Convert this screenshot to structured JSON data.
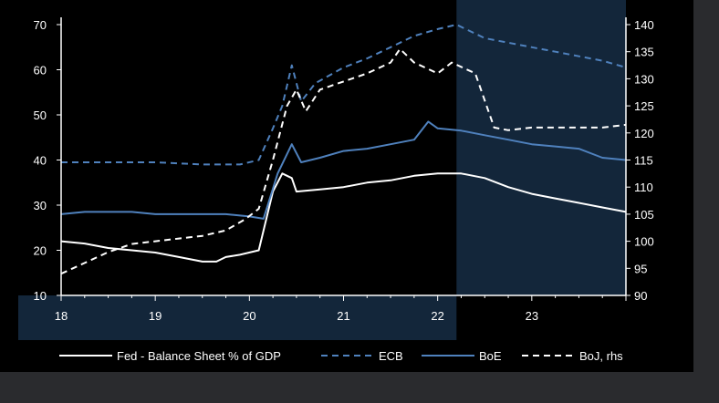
{
  "chart_data": {
    "type": "line",
    "title": "",
    "xlabel": "",
    "ylabel": "",
    "x_ticks": [
      {
        "x": 2018.0,
        "label": "18"
      },
      {
        "x": 2019.0,
        "label": "19"
      },
      {
        "x": 2020.0,
        "label": "20"
      },
      {
        "x": 2021.0,
        "label": "21"
      },
      {
        "x": 2022.0,
        "label": "22"
      },
      {
        "x": 2023.0,
        "label": "23"
      }
    ],
    "xlim": [
      2018.0,
      2024.0
    ],
    "ylim_left": [
      10,
      70
    ],
    "yticks_left": [
      10,
      20,
      30,
      40,
      50,
      60,
      70
    ],
    "ylim_right": [
      90,
      140
    ],
    "yticks_right": [
      90,
      95,
      100,
      105,
      110,
      115,
      120,
      125,
      130,
      135,
      140
    ],
    "shaded_region": {
      "from": 2022.2,
      "to": 2024.0,
      "color": "#13263a"
    },
    "legend_position": "bottom",
    "series": [
      {
        "name": "Fed - Balance Sheet % of GDP",
        "axis": "left",
        "color": "#ffffff",
        "style": "solid",
        "points": [
          [
            2018.0,
            22.0
          ],
          [
            2018.25,
            21.5
          ],
          [
            2018.5,
            20.5
          ],
          [
            2018.75,
            20.0
          ],
          [
            2019.0,
            19.5
          ],
          [
            2019.25,
            18.5
          ],
          [
            2019.5,
            17.5
          ],
          [
            2019.65,
            17.5
          ],
          [
            2019.75,
            18.5
          ],
          [
            2019.9,
            19.0
          ],
          [
            2020.1,
            20.0
          ],
          [
            2020.25,
            33.0
          ],
          [
            2020.35,
            37.0
          ],
          [
            2020.45,
            36.0
          ],
          [
            2020.5,
            33.0
          ],
          [
            2020.75,
            33.5
          ],
          [
            2021.0,
            34.0
          ],
          [
            2021.25,
            35.0
          ],
          [
            2021.5,
            35.5
          ],
          [
            2021.75,
            36.5
          ],
          [
            2022.0,
            37.0
          ],
          [
            2022.25,
            37.0
          ],
          [
            2022.5,
            36.0
          ],
          [
            2022.75,
            34.0
          ],
          [
            2023.0,
            32.5
          ],
          [
            2023.25,
            31.5
          ],
          [
            2023.5,
            30.5
          ],
          [
            2023.75,
            29.5
          ],
          [
            2024.0,
            28.5
          ]
        ]
      },
      {
        "name": "ECB",
        "axis": "left",
        "color": "#4f81bd",
        "style": "dashed",
        "points": [
          [
            2018.0,
            39.5
          ],
          [
            2018.5,
            39.5
          ],
          [
            2019.0,
            39.5
          ],
          [
            2019.5,
            39.0
          ],
          [
            2019.9,
            39.0
          ],
          [
            2020.1,
            40.0
          ],
          [
            2020.25,
            47.0
          ],
          [
            2020.35,
            52.0
          ],
          [
            2020.45,
            61.0
          ],
          [
            2020.55,
            53.0
          ],
          [
            2020.7,
            57.0
          ],
          [
            2021.0,
            60.5
          ],
          [
            2021.25,
            62.5
          ],
          [
            2021.5,
            65.0
          ],
          [
            2021.75,
            67.5
          ],
          [
            2022.0,
            69.0
          ],
          [
            2022.2,
            70.0
          ],
          [
            2022.5,
            67.0
          ],
          [
            2022.75,
            66.0
          ],
          [
            2023.0,
            65.0
          ],
          [
            2023.25,
            64.0
          ],
          [
            2023.5,
            63.0
          ],
          [
            2023.75,
            62.0
          ],
          [
            2024.0,
            60.5
          ]
        ]
      },
      {
        "name": "BoE",
        "axis": "left",
        "color": "#4f81bd",
        "style": "solid",
        "points": [
          [
            2018.0,
            28.0
          ],
          [
            2018.25,
            28.5
          ],
          [
            2018.5,
            28.5
          ],
          [
            2018.75,
            28.5
          ],
          [
            2019.0,
            28.0
          ],
          [
            2019.25,
            28.0
          ],
          [
            2019.5,
            28.0
          ],
          [
            2019.75,
            28.0
          ],
          [
            2020.0,
            27.5
          ],
          [
            2020.15,
            27.0
          ],
          [
            2020.3,
            37.0
          ],
          [
            2020.45,
            43.5
          ],
          [
            2020.55,
            39.5
          ],
          [
            2020.75,
            40.5
          ],
          [
            2021.0,
            42.0
          ],
          [
            2021.25,
            42.5
          ],
          [
            2021.5,
            43.5
          ],
          [
            2021.75,
            44.5
          ],
          [
            2021.9,
            48.5
          ],
          [
            2022.0,
            47.0
          ],
          [
            2022.25,
            46.5
          ],
          [
            2022.5,
            45.5
          ],
          [
            2022.75,
            44.5
          ],
          [
            2023.0,
            43.5
          ],
          [
            2023.25,
            43.0
          ],
          [
            2023.5,
            42.5
          ],
          [
            2023.75,
            40.5
          ],
          [
            2024.0,
            40.0
          ]
        ]
      },
      {
        "name": "BoJ, rhs",
        "axis": "right",
        "color": "#ffffff",
        "style": "dashed",
        "points": [
          [
            2018.0,
            94.0
          ],
          [
            2018.25,
            96.0
          ],
          [
            2018.5,
            98.0
          ],
          [
            2018.75,
            99.5
          ],
          [
            2019.0,
            100.0
          ],
          [
            2019.25,
            100.5
          ],
          [
            2019.5,
            101.0
          ],
          [
            2019.75,
            102.0
          ],
          [
            2019.95,
            104.0
          ],
          [
            2020.1,
            106.0
          ],
          [
            2020.25,
            115.0
          ],
          [
            2020.4,
            125.0
          ],
          [
            2020.5,
            128.0
          ],
          [
            2020.6,
            124.0
          ],
          [
            2020.75,
            128.0
          ],
          [
            2021.0,
            129.5
          ],
          [
            2021.25,
            131.0
          ],
          [
            2021.5,
            133.0
          ],
          [
            2021.6,
            135.5
          ],
          [
            2021.75,
            133.0
          ],
          [
            2022.0,
            131.0
          ],
          [
            2022.15,
            133.0
          ],
          [
            2022.4,
            131.0
          ],
          [
            2022.6,
            121.0
          ],
          [
            2022.75,
            120.5
          ],
          [
            2023.0,
            121.0
          ],
          [
            2023.25,
            121.0
          ],
          [
            2023.5,
            121.0
          ],
          [
            2023.75,
            121.0
          ],
          [
            2024.0,
            121.5
          ]
        ]
      }
    ]
  }
}
